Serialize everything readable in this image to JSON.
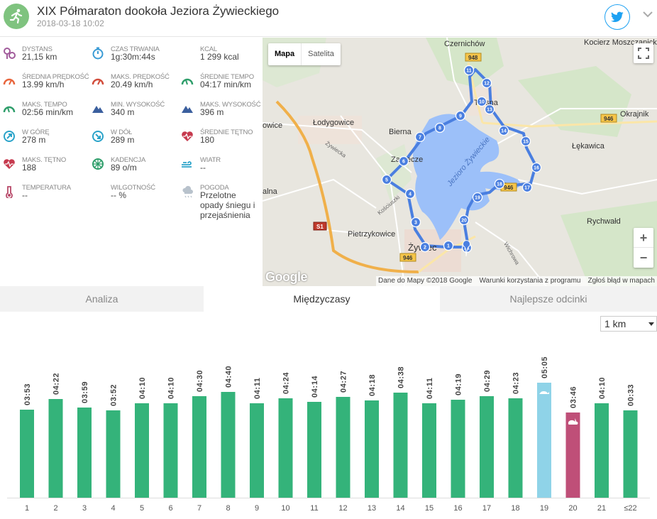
{
  "header": {
    "title": "XIX Półmaraton dookoła Jeziora Żywieckiego",
    "date": "2018-03-18 10:02",
    "sport_icon": "running-icon",
    "share_icon": "twitter-icon"
  },
  "stats": [
    {
      "label": "DYSTANS",
      "value": "21,15 km",
      "icon": "distance-icon",
      "color": "#a15b9b"
    },
    {
      "label": "CZAS TRWANIA",
      "value": "1g:30m:44s",
      "icon": "stopwatch-icon",
      "color": "#3a9bd5"
    },
    {
      "label": "KCAL",
      "value": "1 299 kcal",
      "icon": "flame-icon",
      "color": "#e8663d"
    },
    {
      "label": "ŚREDNIA PRĘDKOŚĆ",
      "value": "13.99 km/h",
      "icon": "speedometer-icon",
      "color": "#e8663d"
    },
    {
      "label": "MAKS. PRĘDKOŚĆ",
      "value": "20.49 km/h",
      "icon": "speedometer-icon",
      "color": "#d24d3c"
    },
    {
      "label": "ŚREDNIE TEMPO",
      "value": "04:17 min/km",
      "icon": "pace-icon",
      "color": "#2f9e6b"
    },
    {
      "label": "MAKS. TEMPO",
      "value": "02:56 min/km",
      "icon": "pace-icon",
      "color": "#2f9e6b"
    },
    {
      "label": "MIN. WYSOKOŚĆ",
      "value": "340 m",
      "icon": "mountain-icon",
      "color": "#3b5f9e"
    },
    {
      "label": "MAKS. WYSOKOŚĆ",
      "value": "396 m",
      "icon": "mountain-icon",
      "color": "#3b5f9e"
    },
    {
      "label": "W GÓRĘ",
      "value": "278 m",
      "icon": "ascent-icon",
      "color": "#2aa3c9"
    },
    {
      "label": "W DÓŁ",
      "value": "289 m",
      "icon": "descent-icon",
      "color": "#2aa3c9"
    },
    {
      "label": "ŚREDNIE TĘTNO",
      "value": "180",
      "icon": "heart-rate-icon",
      "color": "#c63a4e"
    },
    {
      "label": "MAKS. TĘTNO",
      "value": "188",
      "icon": "heart-rate-icon",
      "color": "#c63a4e"
    },
    {
      "label": "KADENCJA",
      "value": "89 o/m",
      "icon": "cadence-icon",
      "color": "#2f9e6b"
    },
    {
      "label": "WIATR",
      "value": "--",
      "icon": "wind-icon",
      "color": "#2aa3c9"
    },
    {
      "label": "TEMPERATURA",
      "value": "--",
      "icon": "thermometer-icon",
      "color": "#b84a6a"
    },
    {
      "label": "WILGOTNOŚĆ",
      "value": "-- %",
      "icon": "humidity-icon",
      "color": "#6db3e0"
    },
    {
      "label": "POGODA",
      "value": "Przelotne opady śniegu i przejaśnienia",
      "icon": "weather-icon",
      "color": "#b8c2cc"
    }
  ],
  "map": {
    "type_buttons": [
      "Mapa",
      "Satelita"
    ],
    "zoom_in": "+",
    "zoom_out": "−",
    "logo": "Google",
    "footer": [
      "Dane do Mapy ©2018 Google",
      "Warunki korzystania z programu",
      "Zgłoś błąd w mapach"
    ],
    "places": [
      "Czernichów",
      "Kocierz Moszczanicki",
      "Okrajnik",
      "Łodygowice",
      "Bierna",
      "Zarzecze",
      "Łękawica",
      "Rychwałd",
      "Pietrzykowice",
      "Żywiec",
      "Tresna",
      "Jezioro Żywieckie",
      "Żywiecka",
      "Kościuszki",
      "Wichrowa",
      "owice",
      "alna"
    ],
    "road_badges": [
      "948",
      "946",
      "946",
      "S1",
      "946"
    ],
    "markers": [
      "1",
      "2",
      "3",
      "4",
      "5",
      "6",
      "7",
      "8",
      "9",
      "10",
      "11",
      "12",
      "13",
      "14",
      "15",
      "16",
      "17",
      "18",
      "19",
      "20",
      "21"
    ]
  },
  "tabs": [
    {
      "label": "Analiza",
      "active": false
    },
    {
      "label": "Międzyczasy",
      "active": true
    },
    {
      "label": "Najlepsze odcinki",
      "active": false
    }
  ],
  "split_select": {
    "value": "1 km"
  },
  "chart_data": {
    "type": "bar",
    "categories": [
      "1",
      "2",
      "3",
      "4",
      "5",
      "6",
      "7",
      "8",
      "9",
      "10",
      "11",
      "12",
      "13",
      "14",
      "15",
      "16",
      "17",
      "18",
      "19",
      "20",
      "21",
      "≤22"
    ],
    "labels": [
      "03:53",
      "04:22",
      "03:59",
      "03:52",
      "04:10",
      "04:10",
      "04:30",
      "04:40",
      "04:11",
      "04:24",
      "04:14",
      "04:27",
      "04:18",
      "04:38",
      "04:11",
      "04:19",
      "04:29",
      "04:23",
      "05:05",
      "03:46",
      "04:10",
      "00:33"
    ],
    "values_seconds": [
      233,
      262,
      239,
      232,
      250,
      250,
      270,
      280,
      251,
      264,
      254,
      267,
      258,
      278,
      251,
      259,
      269,
      263,
      305,
      226,
      250,
      33
    ],
    "values_relative": [
      0.8,
      0.9,
      0.82,
      0.79,
      0.86,
      0.86,
      0.92,
      0.96,
      0.86,
      0.9,
      0.87,
      0.91,
      0.88,
      0.95,
      0.86,
      0.88,
      0.92,
      0.9,
      1.05,
      0.78,
      0.86,
      0.76
    ],
    "colors": {
      "normal": "#34b37a",
      "slowest": "#8fd3e8",
      "fastest": "#bf4f78"
    },
    "slowest_index": 18,
    "fastest_index": 19,
    "markers": {
      "slowest": "turtle-icon",
      "fastest": "rabbit-icon"
    }
  }
}
